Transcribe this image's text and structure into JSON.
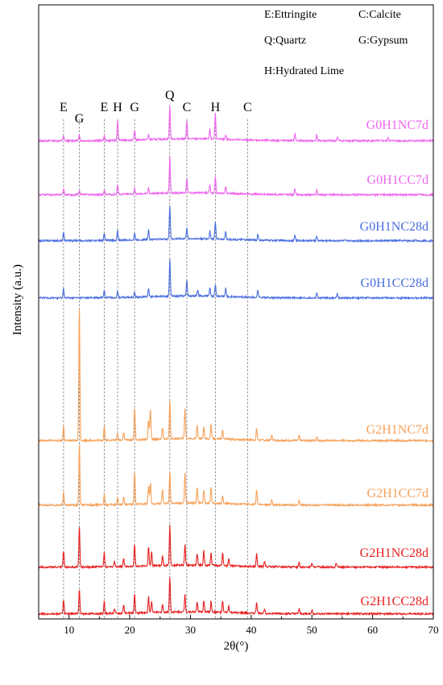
{
  "chart_data": {
    "type": "line",
    "title": "",
    "xlabel": "2θ(°)",
    "ylabel": "Intensity (a.u.)",
    "xlim": [
      5,
      70
    ],
    "xticks": [
      10,
      20,
      30,
      40,
      50,
      60,
      70
    ],
    "xtick_labels": [
      "10",
      "20",
      "30",
      "40",
      "50",
      "60",
      "70"
    ],
    "grid": false,
    "legend": {
      "placement": "top-right",
      "entries": [
        "E:Ettringite",
        "C:Calcite",
        "Q:Quartz",
        "G:Gypsum",
        "H:Hydrated Lime"
      ]
    },
    "reference_lines": [
      {
        "label": "E",
        "x": 9.1
      },
      {
        "label": "G",
        "x": 11.7
      },
      {
        "label": "E",
        "x": 15.8
      },
      {
        "label": "H",
        "x": 18.0
      },
      {
        "label": "G",
        "x": 20.8
      },
      {
        "label": "Q",
        "x": 26.6
      },
      {
        "label": "C",
        "x": 29.4
      },
      {
        "label": "H",
        "x": 34.1
      },
      {
        "label": "C",
        "x": 39.4
      }
    ],
    "series": [
      {
        "name": "G0H1NC7d",
        "color": "#ee66ee",
        "peaks": [
          [
            9.1,
            6
          ],
          [
            11.7,
            7
          ],
          [
            15.8,
            6
          ],
          [
            18.0,
            24
          ],
          [
            20.8,
            12
          ],
          [
            23.1,
            6
          ],
          [
            26.6,
            42
          ],
          [
            29.4,
            22
          ],
          [
            33.2,
            12
          ],
          [
            34.1,
            32
          ],
          [
            35.8,
            6
          ],
          [
            47.2,
            9
          ],
          [
            50.8,
            7
          ],
          [
            54.2,
            5
          ],
          [
            62.6,
            4
          ]
        ]
      },
      {
        "name": "G0H1CC7d",
        "color": "#ee66ee",
        "peaks": [
          [
            9.1,
            8
          ],
          [
            11.7,
            5
          ],
          [
            15.8,
            6
          ],
          [
            18.0,
            12
          ],
          [
            20.8,
            8
          ],
          [
            23.1,
            7
          ],
          [
            26.6,
            45
          ],
          [
            29.4,
            18
          ],
          [
            33.2,
            10
          ],
          [
            34.1,
            20
          ],
          [
            35.8,
            8
          ],
          [
            47.2,
            7
          ],
          [
            50.8,
            6
          ]
        ]
      },
      {
        "name": "G0H1NC28d",
        "color": "#4a6ee0",
        "peaks": [
          [
            9.1,
            11
          ],
          [
            15.8,
            9
          ],
          [
            18.0,
            12
          ],
          [
            20.8,
            8
          ],
          [
            23.1,
            12
          ],
          [
            26.6,
            42
          ],
          [
            29.4,
            14
          ],
          [
            33.2,
            10
          ],
          [
            34.1,
            22
          ],
          [
            35.8,
            10
          ],
          [
            41.1,
            7
          ],
          [
            47.2,
            7
          ],
          [
            50.8,
            6
          ]
        ]
      },
      {
        "name": "G0H1CC28d",
        "color": "#4a6ee0",
        "peaks": [
          [
            9.1,
            12
          ],
          [
            15.8,
            9
          ],
          [
            18.0,
            8
          ],
          [
            20.8,
            7
          ],
          [
            23.1,
            10
          ],
          [
            26.6,
            46
          ],
          [
            29.4,
            20
          ],
          [
            31.2,
            8
          ],
          [
            33.2,
            10
          ],
          [
            34.1,
            15
          ],
          [
            35.8,
            10
          ],
          [
            41.1,
            9
          ],
          [
            50.8,
            6
          ],
          [
            54.2,
            6
          ]
        ]
      },
      {
        "name": "G2H1NC7d",
        "color": "#f5a15a",
        "peaks": [
          [
            9.1,
            18
          ],
          [
            11.7,
            168
          ],
          [
            15.8,
            18
          ],
          [
            18.0,
            8
          ],
          [
            19.0,
            10
          ],
          [
            20.8,
            40
          ],
          [
            23.1,
            24
          ],
          [
            23.4,
            38
          ],
          [
            25.4,
            14
          ],
          [
            26.6,
            46
          ],
          [
            29.1,
            38
          ],
          [
            31.1,
            16
          ],
          [
            32.2,
            14
          ],
          [
            33.4,
            18
          ],
          [
            35.3,
            12
          ],
          [
            40.9,
            14
          ],
          [
            43.4,
            6
          ],
          [
            47.9,
            6
          ],
          [
            50.8,
            5
          ]
        ]
      },
      {
        "name": "G2H1CC7d",
        "color": "#f5a15a",
        "peaks": [
          [
            9.1,
            16
          ],
          [
            11.7,
            76
          ],
          [
            15.8,
            14
          ],
          [
            18.0,
            8
          ],
          [
            19.0,
            10
          ],
          [
            20.8,
            40
          ],
          [
            23.1,
            22
          ],
          [
            23.4,
            26
          ],
          [
            25.4,
            18
          ],
          [
            26.6,
            40
          ],
          [
            29.1,
            38
          ],
          [
            31.1,
            20
          ],
          [
            32.2,
            16
          ],
          [
            33.4,
            20
          ],
          [
            35.3,
            10
          ],
          [
            40.9,
            18
          ],
          [
            43.4,
            6
          ],
          [
            47.9,
            5
          ]
        ]
      },
      {
        "name": "G2H1NC28d",
        "color": "#e61e1e",
        "peaks": [
          [
            9.1,
            20
          ],
          [
            11.7,
            50
          ],
          [
            15.8,
            18
          ],
          [
            17.5,
            6
          ],
          [
            19.0,
            10
          ],
          [
            20.8,
            28
          ],
          [
            23.1,
            24
          ],
          [
            23.6,
            18
          ],
          [
            25.4,
            12
          ],
          [
            26.6,
            50
          ],
          [
            29.1,
            26
          ],
          [
            31.1,
            14
          ],
          [
            32.2,
            18
          ],
          [
            33.4,
            16
          ],
          [
            35.3,
            16
          ],
          [
            36.3,
            8
          ],
          [
            40.9,
            16
          ],
          [
            42.2,
            7
          ],
          [
            47.9,
            6
          ],
          [
            50.0,
            5
          ],
          [
            54.0,
            5
          ]
        ]
      },
      {
        "name": "G2H1CC28d",
        "color": "#e61e1e",
        "peaks": [
          [
            9.1,
            18
          ],
          [
            11.7,
            30
          ],
          [
            15.8,
            16
          ],
          [
            17.5,
            6
          ],
          [
            19.0,
            10
          ],
          [
            20.8,
            24
          ],
          [
            23.1,
            20
          ],
          [
            23.6,
            14
          ],
          [
            25.4,
            10
          ],
          [
            26.6,
            44
          ],
          [
            29.1,
            22
          ],
          [
            31.1,
            12
          ],
          [
            32.2,
            14
          ],
          [
            33.4,
            14
          ],
          [
            35.3,
            14
          ],
          [
            36.3,
            8
          ],
          [
            40.9,
            14
          ],
          [
            42.2,
            6
          ],
          [
            47.9,
            6
          ],
          [
            50.0,
            5
          ]
        ]
      }
    ]
  }
}
